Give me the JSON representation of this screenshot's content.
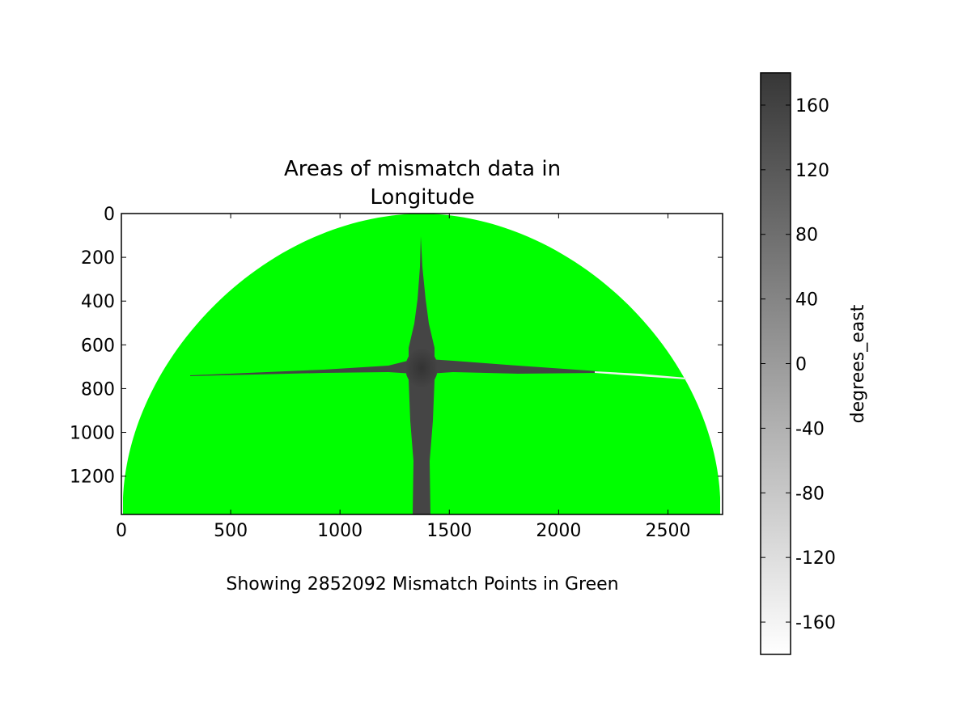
{
  "chart_data": {
    "type": "heatmap",
    "title": [
      "Areas of mismatch data in",
      "Longitude"
    ],
    "xlabel": "Showing 2852092 Mismatch Points in Green",
    "ylabel": "",
    "xlim": [
      0,
      2750
    ],
    "ylim": [
      1375,
      0
    ],
    "xticks": [
      0,
      500,
      1000,
      1500,
      2000,
      2500
    ],
    "yticks": [
      0,
      200,
      400,
      600,
      800,
      1000,
      1200
    ],
    "grid": false,
    "mismatch_color": "#00ff00",
    "colorbar": {
      "label": "degrees_east",
      "range": [
        -180,
        180
      ],
      "ticks": [
        160,
        120,
        80,
        40,
        0,
        -40,
        -80,
        -120,
        -160
      ],
      "color_low": "#ffffff",
      "color_high": "#373737"
    }
  }
}
